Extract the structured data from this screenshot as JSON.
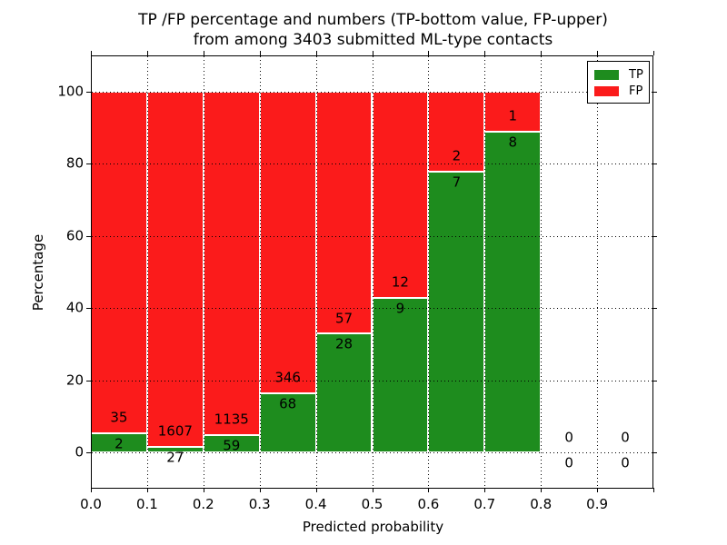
{
  "title": {
    "line1": "TP /FP percentage and numbers (TP-bottom value, FP-upper)",
    "line2": "from among 3403 submitted ML-type contacts"
  },
  "colors": {
    "tp_green": "#1e8c1e",
    "fp_red": "#fb1b1b",
    "grid": "#000000",
    "text": "#000000",
    "background": "#ffffff"
  },
  "chart_data": {
    "type": "bar",
    "stacked": true,
    "percent_normalized": true,
    "title": "TP /FP percentage and numbers (TP-bottom value, FP-upper)\nfrom among 3403 submitted ML-type contacts",
    "xlabel": "Predicted probability",
    "ylabel": "Percentage",
    "xlim": [
      0.0,
      1.0
    ],
    "ylim": [
      -10,
      110
    ],
    "x_ticks": [
      "0.0",
      "0.1",
      "0.2",
      "0.3",
      "0.4",
      "0.5",
      "0.6",
      "0.7",
      "0.8",
      "0.9"
    ],
    "y_ticks": [
      0,
      20,
      40,
      60,
      80,
      100
    ],
    "grid": {
      "style": "dotted",
      "drawn_over_bars": true
    },
    "legend": {
      "position": "upper-right",
      "entries": [
        {
          "label": "TP",
          "color": "#1e8c1e"
        },
        {
          "label": "FP",
          "color": "#fb1b1b"
        }
      ]
    },
    "bin_width": 0.1,
    "bin_edges": [
      0.0,
      0.1,
      0.2,
      0.3,
      0.4,
      0.5,
      0.6,
      0.7,
      0.8,
      0.9,
      1.0
    ],
    "categories": [
      "0.0-0.1",
      "0.1-0.2",
      "0.2-0.3",
      "0.3-0.4",
      "0.4-0.5",
      "0.5-0.6",
      "0.6-0.7",
      "0.7-0.8",
      "0.8-0.9",
      "0.9-1.0"
    ],
    "series": [
      {
        "name": "TP",
        "color": "#1e8c1e",
        "values": [
          2,
          27,
          59,
          68,
          28,
          9,
          7,
          8,
          0,
          0
        ]
      },
      {
        "name": "FP",
        "color": "#fb1b1b",
        "values": [
          35,
          1607,
          1135,
          346,
          57,
          12,
          2,
          1,
          0,
          0
        ]
      }
    ],
    "tp_percent_per_bin": [
      5.41,
      1.65,
      4.94,
      16.43,
      32.94,
      42.86,
      77.78,
      88.89,
      0,
      0
    ]
  }
}
